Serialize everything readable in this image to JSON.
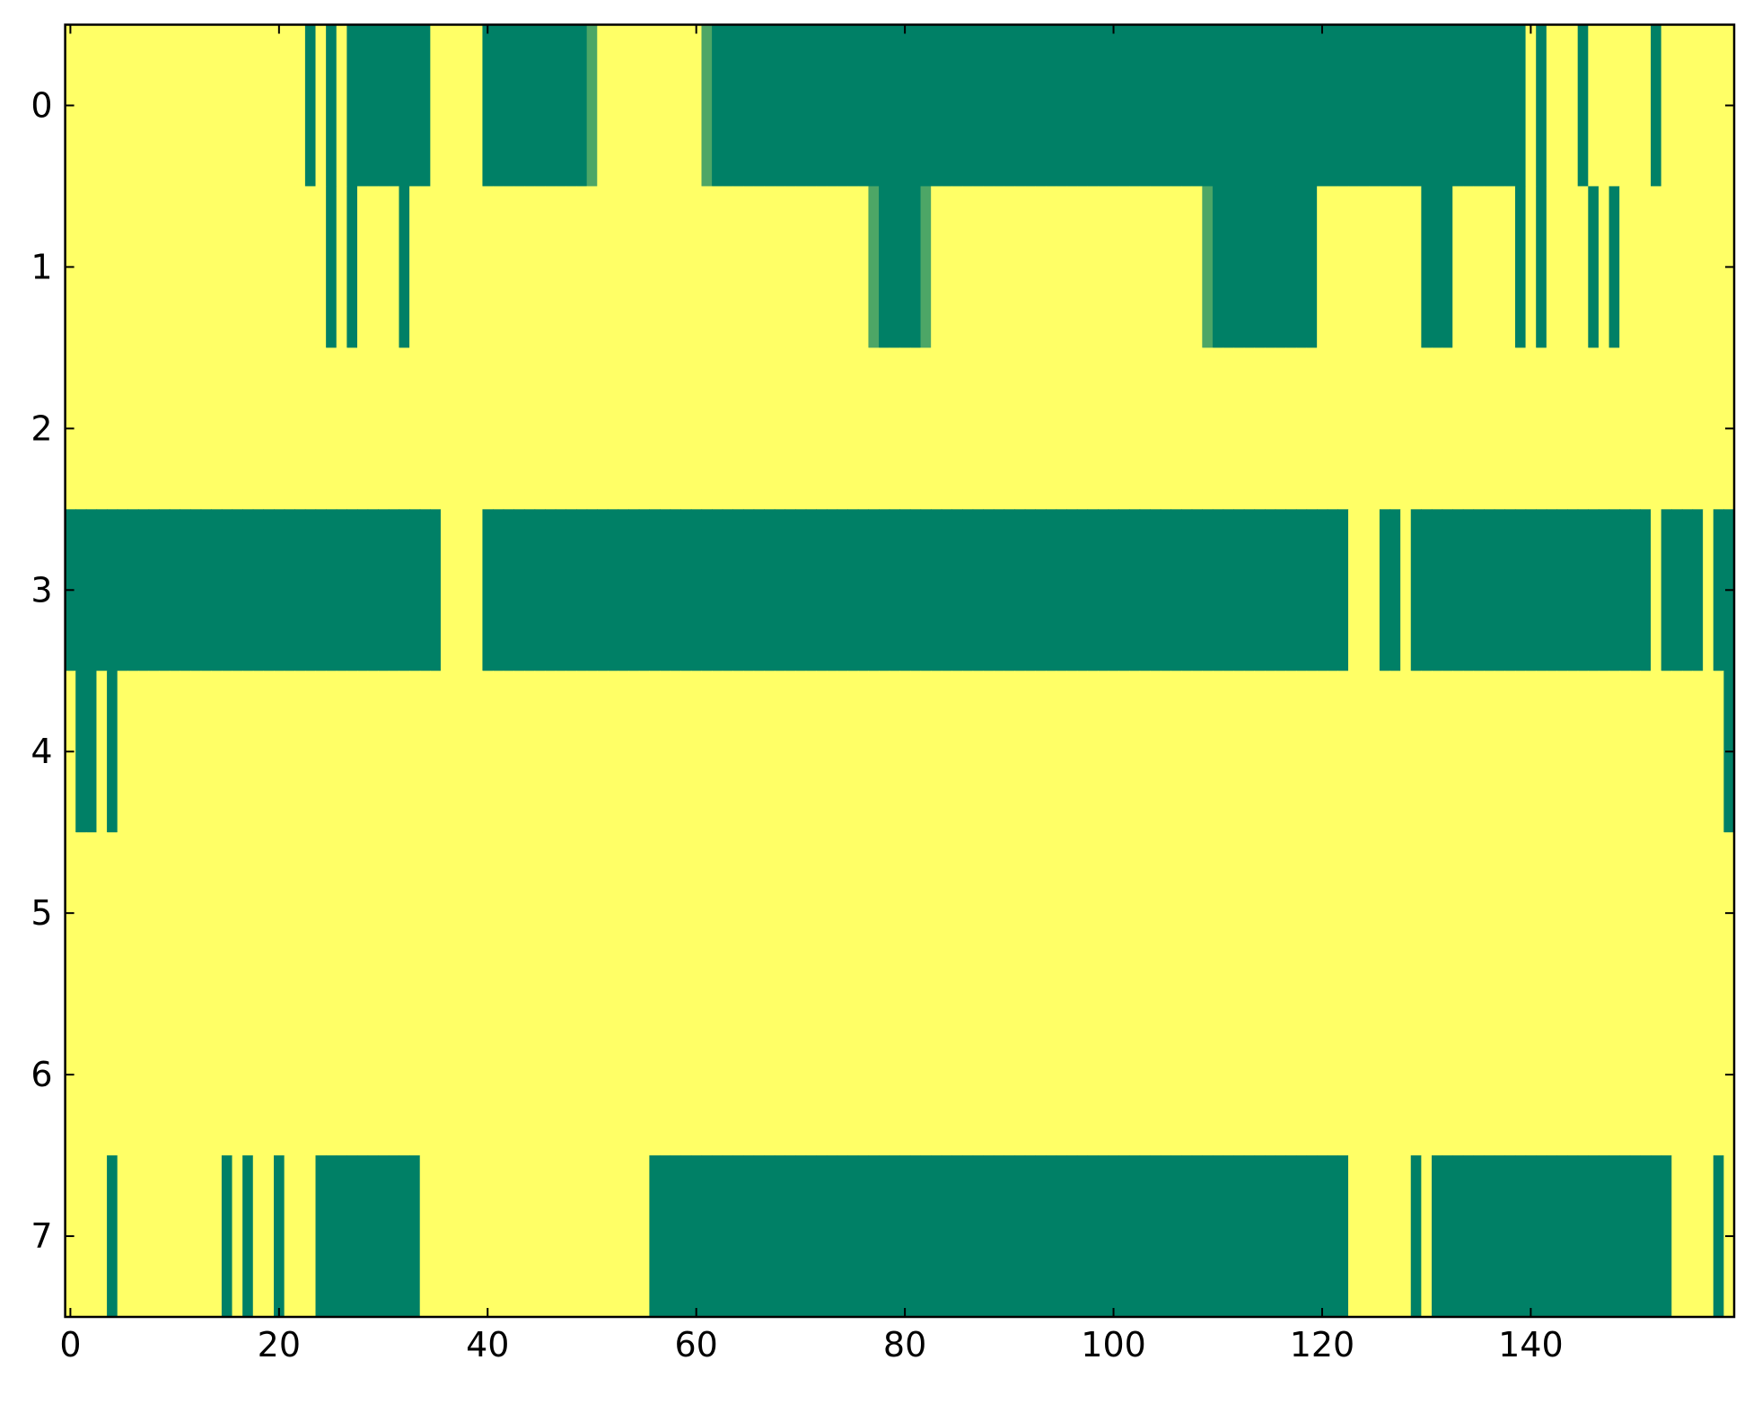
{
  "chart_data": {
    "type": "heatmap",
    "colormap": "summer",
    "xlim": [
      -0.5,
      159.5
    ],
    "ylim": [
      7.5,
      -0.5
    ],
    "xticks": [
      0,
      20,
      40,
      60,
      80,
      100,
      120,
      140
    ],
    "yticks": [
      0,
      1,
      2,
      3,
      4,
      5,
      6,
      7
    ],
    "z": [
      [
        1,
        1,
        1,
        1,
        1,
        1,
        1,
        1,
        1,
        1,
        1,
        1,
        1,
        1,
        1,
        1,
        1,
        1,
        1,
        1,
        1,
        1,
        1,
        0,
        1,
        0,
        1,
        0,
        0,
        0,
        0,
        0,
        0,
        0,
        0,
        1,
        1,
        1,
        1,
        1,
        0,
        0,
        0,
        0,
        0,
        0,
        0,
        0,
        0,
        0,
        0.3,
        1,
        1,
        1,
        1,
        1,
        1,
        1,
        1,
        1,
        1,
        0.3,
        0,
        0,
        0,
        0,
        0,
        0,
        0,
        0,
        0,
        0,
        0,
        0,
        0,
        0,
        0,
        0,
        0,
        0,
        0,
        0,
        0,
        0,
        0,
        0,
        0,
        0,
        0,
        0,
        0,
        0,
        0,
        0,
        0,
        0,
        0,
        0,
        0,
        0,
        0,
        0,
        0,
        0,
        0,
        0,
        0,
        0,
        0,
        0,
        0,
        0,
        0,
        0,
        0,
        0,
        0,
        0,
        0,
        0,
        0,
        0,
        0,
        0,
        0,
        0,
        0,
        0,
        0,
        0,
        0,
        0,
        0,
        0,
        0,
        0,
        0,
        0,
        0,
        0,
        1,
        0,
        1,
        1,
        1,
        0,
        1,
        1,
        1,
        1,
        1,
        1,
        0,
        1,
        1,
        1,
        1,
        1,
        1,
        1
      ],
      [
        1,
        1,
        1,
        1,
        1,
        1,
        1,
        1,
        1,
        1,
        1,
        1,
        1,
        1,
        1,
        1,
        1,
        1,
        1,
        1,
        1,
        1,
        1,
        1,
        1,
        0,
        1,
        0,
        1,
        1,
        1,
        1,
        0,
        1,
        1,
        1,
        1,
        1,
        1,
        1,
        1,
        1,
        1,
        1,
        1,
        1,
        1,
        1,
        1,
        1,
        1,
        1,
        1,
        1,
        1,
        1,
        1,
        1,
        1,
        1,
        1,
        1,
        1,
        1,
        1,
        1,
        1,
        1,
        1,
        1,
        1,
        1,
        1,
        1,
        1,
        1,
        1,
        0.3,
        0,
        0,
        0,
        0,
        0.3,
        1,
        1,
        1,
        1,
        1,
        1,
        1,
        1,
        1,
        1,
        1,
        1,
        1,
        1,
        1,
        1,
        1,
        1,
        1,
        1,
        1,
        1,
        1,
        1,
        1,
        1,
        0.3,
        0,
        0,
        0,
        0,
        0,
        0,
        0,
        0,
        0,
        0,
        1,
        1,
        1,
        1,
        1,
        1,
        1,
        1,
        1,
        1,
        0,
        0,
        0,
        1,
        1,
        1,
        1,
        1,
        1,
        0,
        1,
        0,
        1,
        1,
        1,
        1,
        0,
        1,
        0,
        1,
        1,
        1,
        1,
        1,
        1,
        1,
        1,
        1,
        1,
        1
      ],
      [
        1,
        1,
        1,
        1,
        1,
        1,
        1,
        1,
        1,
        1,
        1,
        1,
        1,
        1,
        1,
        1,
        1,
        1,
        1,
        1,
        1,
        1,
        1,
        1,
        1,
        1,
        1,
        1,
        1,
        1,
        1,
        1,
        1,
        1,
        1,
        1,
        1,
        1,
        1,
        1,
        1,
        1,
        1,
        1,
        1,
        1,
        1,
        1,
        1,
        1,
        1,
        1,
        1,
        1,
        1,
        1,
        1,
        1,
        1,
        1,
        1,
        1,
        1,
        1,
        1,
        1,
        1,
        1,
        1,
        1,
        1,
        1,
        1,
        1,
        1,
        1,
        1,
        1,
        1,
        1,
        1,
        1,
        1,
        1,
        1,
        1,
        1,
        1,
        1,
        1,
        1,
        1,
        1,
        1,
        1,
        1,
        1,
        1,
        1,
        1,
        1,
        1,
        1,
        1,
        1,
        1,
        1,
        1,
        1,
        1,
        1,
        1,
        1,
        1,
        1,
        1,
        1,
        1,
        1,
        1,
        1,
        1,
        1,
        1,
        1,
        1,
        1,
        1,
        1,
        1,
        1,
        1,
        1,
        1,
        1,
        1,
        1,
        1,
        1,
        1,
        1,
        1,
        1,
        1,
        1,
        1,
        1,
        1,
        1,
        1,
        1,
        1,
        1,
        1,
        1,
        1,
        1,
        1,
        1,
        1
      ],
      [
        0,
        0,
        0,
        0,
        0,
        0,
        0,
        0,
        0,
        0,
        0,
        0,
        0,
        0,
        0,
        0,
        0,
        0,
        0,
        0,
        0,
        0,
        0,
        0,
        0,
        0,
        0,
        0,
        0,
        0,
        0,
        0,
        0,
        0,
        0,
        0,
        1,
        1,
        1,
        1,
        0,
        0,
        0,
        0,
        0,
        0,
        0,
        0,
        0,
        0,
        0,
        0,
        0,
        0,
        0,
        0,
        0,
        0,
        0,
        0,
        0,
        0,
        0,
        0,
        0,
        0,
        0,
        0,
        0,
        0,
        0,
        0,
        0,
        0,
        0,
        0,
        0,
        0,
        0,
        0,
        0,
        0,
        0,
        0,
        0,
        0,
        0,
        0,
        0,
        0,
        0,
        0,
        0,
        0,
        0,
        0,
        0,
        0,
        0,
        0,
        0,
        0,
        0,
        0,
        0,
        0,
        0,
        0,
        0,
        0,
        0,
        0,
        0,
        0,
        0,
        0,
        0,
        0,
        0,
        0,
        0,
        0,
        0,
        1,
        1,
        1,
        0,
        0,
        1,
        0,
        0,
        0,
        0,
        0,
        0,
        0,
        0,
        0,
        0,
        0,
        0,
        0,
        0,
        0,
        0,
        0,
        0,
        0,
        0,
        0,
        0,
        0,
        1,
        0,
        0,
        0,
        0,
        1,
        0,
        0
      ],
      [
        1,
        0,
        0,
        1,
        0,
        1,
        1,
        1,
        1,
        1,
        1,
        1,
        1,
        1,
        1,
        1,
        1,
        1,
        1,
        1,
        1,
        1,
        1,
        1,
        1,
        1,
        1,
        1,
        1,
        1,
        1,
        1,
        1,
        1,
        1,
        1,
        1,
        1,
        1,
        1,
        1,
        1,
        1,
        1,
        1,
        1,
        1,
        1,
        1,
        1,
        1,
        1,
        1,
        1,
        1,
        1,
        1,
        1,
        1,
        1,
        1,
        1,
        1,
        1,
        1,
        1,
        1,
        1,
        1,
        1,
        1,
        1,
        1,
        1,
        1,
        1,
        1,
        1,
        1,
        1,
        1,
        1,
        1,
        1,
        1,
        1,
        1,
        1,
        1,
        1,
        1,
        1,
        1,
        1,
        1,
        1,
        1,
        1,
        1,
        1,
        1,
        1,
        1,
        1,
        1,
        1,
        1,
        1,
        1,
        1,
        1,
        1,
        1,
        1,
        1,
        1,
        1,
        1,
        1,
        1,
        1,
        1,
        1,
        1,
        1,
        1,
        1,
        1,
        1,
        1,
        1,
        1,
        1,
        1,
        1,
        1,
        1,
        1,
        1,
        1,
        1,
        1,
        1,
        1,
        1,
        1,
        1,
        1,
        1,
        1,
        1,
        1,
        1,
        1,
        1,
        1,
        1,
        1,
        1,
        0
      ],
      [
        1,
        1,
        1,
        1,
        1,
        1,
        1,
        1,
        1,
        1,
        1,
        1,
        1,
        1,
        1,
        1,
        1,
        1,
        1,
        1,
        1,
        1,
        1,
        1,
        1,
        1,
        1,
        1,
        1,
        1,
        1,
        1,
        1,
        1,
        1,
        1,
        1,
        1,
        1,
        1,
        1,
        1,
        1,
        1,
        1,
        1,
        1,
        1,
        1,
        1,
        1,
        1,
        1,
        1,
        1,
        1,
        1,
        1,
        1,
        1,
        1,
        1,
        1,
        1,
        1,
        1,
        1,
        1,
        1,
        1,
        1,
        1,
        1,
        1,
        1,
        1,
        1,
        1,
        1,
        1,
        1,
        1,
        1,
        1,
        1,
        1,
        1,
        1,
        1,
        1,
        1,
        1,
        1,
        1,
        1,
        1,
        1,
        1,
        1,
        1,
        1,
        1,
        1,
        1,
        1,
        1,
        1,
        1,
        1,
        1,
        1,
        1,
        1,
        1,
        1,
        1,
        1,
        1,
        1,
        1,
        1,
        1,
        1,
        1,
        1,
        1,
        1,
        1,
        1,
        1,
        1,
        1,
        1,
        1,
        1,
        1,
        1,
        1,
        1,
        1,
        1,
        1,
        1,
        1,
        1,
        1,
        1,
        1,
        1,
        1,
        1,
        1,
        1,
        1,
        1,
        1,
        1,
        1,
        1,
        1
      ],
      [
        1,
        1,
        1,
        1,
        1,
        1,
        1,
        1,
        1,
        1,
        1,
        1,
        1,
        1,
        1,
        1,
        1,
        1,
        1,
        1,
        1,
        1,
        1,
        1,
        1,
        1,
        1,
        1,
        1,
        1,
        1,
        1,
        1,
        1,
        1,
        1,
        1,
        1,
        1,
        1,
        1,
        1,
        1,
        1,
        1,
        1,
        1,
        1,
        1,
        1,
        1,
        1,
        1,
        1,
        1,
        1,
        1,
        1,
        1,
        1,
        1,
        1,
        1,
        1,
        1,
        1,
        1,
        1,
        1,
        1,
        1,
        1,
        1,
        1,
        1,
        1,
        1,
        1,
        1,
        1,
        1,
        1,
        1,
        1,
        1,
        1,
        1,
        1,
        1,
        1,
        1,
        1,
        1,
        1,
        1,
        1,
        1,
        1,
        1,
        1,
        1,
        1,
        1,
        1,
        1,
        1,
        1,
        1,
        1,
        1,
        1,
        1,
        1,
        1,
        1,
        1,
        1,
        1,
        1,
        1,
        1,
        1,
        1,
        1,
        1,
        1,
        1,
        1,
        1,
        1,
        1,
        1,
        1,
        1,
        1,
        1,
        1,
        1,
        1,
        1,
        1,
        1,
        1,
        1,
        1,
        1,
        1,
        1,
        1,
        1,
        1,
        1,
        1,
        1,
        1,
        1,
        1,
        1,
        1,
        1
      ],
      [
        1,
        1,
        1,
        1,
        0,
        1,
        1,
        1,
        1,
        1,
        1,
        1,
        1,
        1,
        1,
        0,
        1,
        0,
        1,
        1,
        0,
        1,
        1,
        1,
        0,
        0,
        0,
        0,
        0,
        0,
        0,
        0,
        0,
        0,
        1,
        1,
        1,
        1,
        1,
        1,
        1,
        1,
        1,
        1,
        1,
        1,
        1,
        1,
        1,
        1,
        1,
        1,
        1,
        1,
        1,
        1,
        0,
        0,
        0,
        0,
        0,
        0,
        0,
        0,
        0,
        0,
        0,
        0,
        0,
        0,
        0,
        0,
        0,
        0,
        0,
        0,
        0,
        0,
        0,
        0,
        0,
        0,
        0,
        0,
        0,
        0,
        0,
        0,
        0,
        0,
        0,
        0,
        0,
        0,
        0,
        0,
        0,
        0,
        0,
        0,
        0,
        0,
        0,
        0,
        0,
        0,
        0,
        0,
        0,
        0,
        0,
        0,
        0,
        0,
        0,
        0,
        0,
        0,
        0,
        0,
        0,
        0,
        0,
        1,
        1,
        1,
        1,
        1,
        1,
        0,
        1,
        0,
        0,
        0,
        0,
        0,
        0,
        0,
        0,
        0,
        0,
        0,
        0,
        0,
        0,
        0,
        0,
        0,
        0,
        0,
        0,
        0,
        0,
        0,
        1,
        1,
        1,
        1,
        0,
        1
      ]
    ]
  }
}
